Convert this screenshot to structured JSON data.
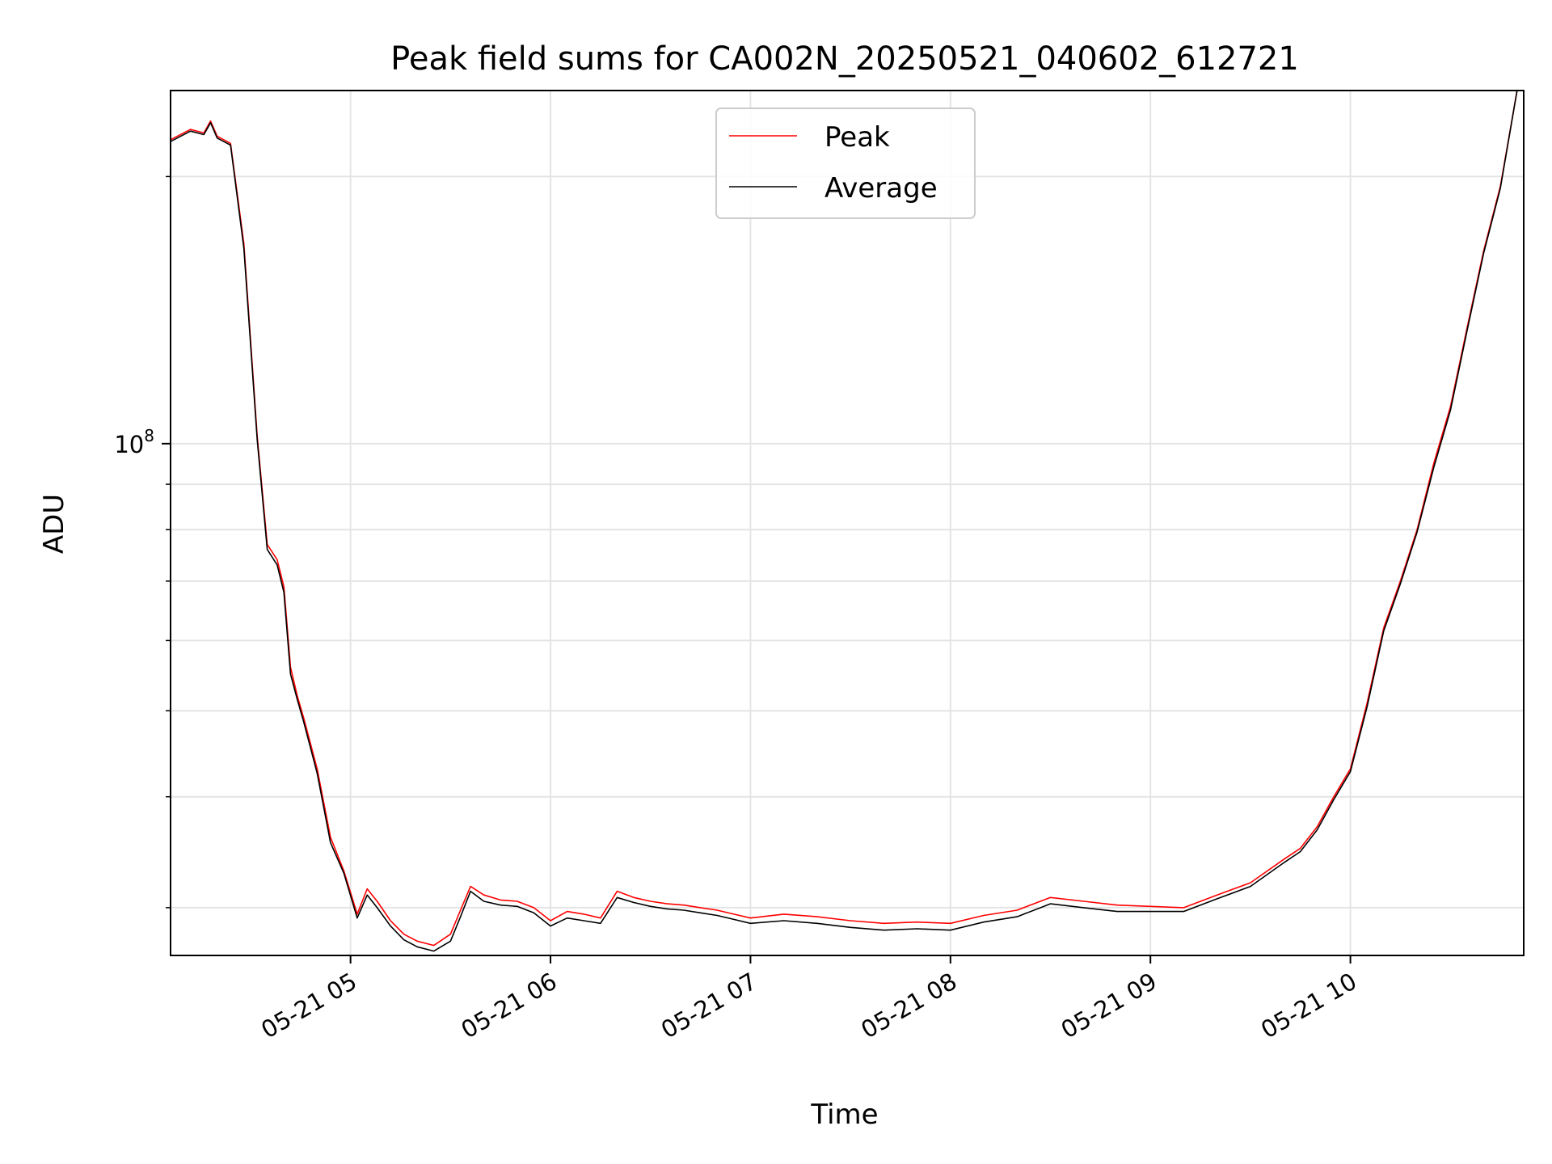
{
  "chart_data": {
    "type": "line",
    "title": "Peak field sums for CA002N_20250521_040602_612721",
    "xlabel": "Time",
    "ylabel": "ADU",
    "y_scale": "log",
    "grid": true,
    "legend_position": "top-center",
    "xlim": [
      "2025-05-21 04:06",
      "2025-05-21 10:52"
    ],
    "ylim": [
      26500000.0,
      250000000.0
    ],
    "x_ticks": [
      {
        "value": "2025-05-21 05:00",
        "label": "05-21 05"
      },
      {
        "value": "2025-05-21 06:00",
        "label": "05-21 06"
      },
      {
        "value": "2025-05-21 07:00",
        "label": "05-21 07"
      },
      {
        "value": "2025-05-21 08:00",
        "label": "05-21 08"
      },
      {
        "value": "2025-05-21 09:00",
        "label": "05-21 09"
      },
      {
        "value": "2025-05-21 10:00",
        "label": "05-21 10"
      }
    ],
    "y_major_ticks": [
      {
        "value": 100000000,
        "label_base": "10",
        "label_exp": "8"
      }
    ],
    "y_minor_ticks": [
      30000000,
      40000000,
      50000000,
      60000000,
      70000000,
      80000000,
      90000000,
      200000000
    ],
    "series": [
      {
        "name": "Peak",
        "color": "#ff0000",
        "x": [
          "2025-05-21 04:06",
          "2025-05-21 04:12",
          "2025-05-21 04:16",
          "2025-05-21 04:18",
          "2025-05-21 04:20",
          "2025-05-21 04:24",
          "2025-05-21 04:28",
          "2025-05-21 04:32",
          "2025-05-21 04:35",
          "2025-05-21 04:38",
          "2025-05-21 04:40",
          "2025-05-21 04:42",
          "2025-05-21 04:44",
          "2025-05-21 04:46",
          "2025-05-21 04:50",
          "2025-05-21 04:54",
          "2025-05-21 04:58",
          "2025-05-21 05:02",
          "2025-05-21 05:05",
          "2025-05-21 05:08",
          "2025-05-21 05:12",
          "2025-05-21 05:16",
          "2025-05-21 05:20",
          "2025-05-21 05:25",
          "2025-05-21 05:30",
          "2025-05-21 05:33",
          "2025-05-21 05:36",
          "2025-05-21 05:40",
          "2025-05-21 05:45",
          "2025-05-21 05:50",
          "2025-05-21 05:55",
          "2025-05-21 06:00",
          "2025-05-21 06:05",
          "2025-05-21 06:10",
          "2025-05-21 06:15",
          "2025-05-21 06:20",
          "2025-05-21 06:25",
          "2025-05-21 06:30",
          "2025-05-21 06:35",
          "2025-05-21 06:40",
          "2025-05-21 06:45",
          "2025-05-21 06:50",
          "2025-05-21 06:55",
          "2025-05-21 07:00",
          "2025-05-21 07:10",
          "2025-05-21 07:20",
          "2025-05-21 07:30",
          "2025-05-21 07:40",
          "2025-05-21 07:50",
          "2025-05-21 08:00",
          "2025-05-21 08:10",
          "2025-05-21 08:20",
          "2025-05-21 08:30",
          "2025-05-21 08:40",
          "2025-05-21 08:50",
          "2025-05-21 09:00",
          "2025-05-21 09:10",
          "2025-05-21 09:20",
          "2025-05-21 09:30",
          "2025-05-21 09:40",
          "2025-05-21 09:45",
          "2025-05-21 09:50",
          "2025-05-21 09:55",
          "2025-05-21 10:00",
          "2025-05-21 10:05",
          "2025-05-21 10:10",
          "2025-05-21 10:15",
          "2025-05-21 10:20",
          "2025-05-21 10:25",
          "2025-05-21 10:30",
          "2025-05-21 10:35",
          "2025-05-21 10:40",
          "2025-05-21 10:45",
          "2025-05-21 10:50"
        ],
        "values": [
          220000000,
          226000000,
          224000000,
          231000000,
          222000000,
          218000000,
          168000000,
          102000000,
          77000000,
          74000000,
          69000000,
          56000000,
          52000000,
          49000000,
          43000000,
          36000000,
          33000000,
          29500000,
          31500000,
          30500000,
          29000000,
          28000000,
          27500000,
          27200000,
          28000000,
          29800000,
          31700000,
          31000000,
          30600000,
          30500000,
          30000000,
          29000000,
          29700000,
          29500000,
          29200000,
          31300000,
          30800000,
          30500000,
          30300000,
          30200000,
          30000000,
          29800000,
          29500000,
          29200000,
          29500000,
          29300000,
          29000000,
          28800000,
          28900000,
          28800000,
          29400000,
          29800000,
          30800000,
          30500000,
          30200000,
          30100000,
          30000000,
          31000000,
          32000000,
          34000000,
          35000000,
          37000000,
          40000000,
          43000000,
          51000000,
          62000000,
          70000000,
          80000000,
          95000000,
          110000000,
          135000000,
          165000000,
          195000000,
          250000000
        ]
      },
      {
        "name": "Average",
        "color": "#000000",
        "x": [
          "2025-05-21 04:06",
          "2025-05-21 04:12",
          "2025-05-21 04:16",
          "2025-05-21 04:18",
          "2025-05-21 04:20",
          "2025-05-21 04:24",
          "2025-05-21 04:28",
          "2025-05-21 04:32",
          "2025-05-21 04:35",
          "2025-05-21 04:38",
          "2025-05-21 04:40",
          "2025-05-21 04:42",
          "2025-05-21 04:44",
          "2025-05-21 04:46",
          "2025-05-21 04:50",
          "2025-05-21 04:54",
          "2025-05-21 04:58",
          "2025-05-21 05:02",
          "2025-05-21 05:05",
          "2025-05-21 05:08",
          "2025-05-21 05:12",
          "2025-05-21 05:16",
          "2025-05-21 05:20",
          "2025-05-21 05:25",
          "2025-05-21 05:30",
          "2025-05-21 05:33",
          "2025-05-21 05:36",
          "2025-05-21 05:40",
          "2025-05-21 05:45",
          "2025-05-21 05:50",
          "2025-05-21 05:55",
          "2025-05-21 06:00",
          "2025-05-21 06:05",
          "2025-05-21 06:10",
          "2025-05-21 06:15",
          "2025-05-21 06:20",
          "2025-05-21 06:25",
          "2025-05-21 06:30",
          "2025-05-21 06:35",
          "2025-05-21 06:40",
          "2025-05-21 06:45",
          "2025-05-21 06:50",
          "2025-05-21 06:55",
          "2025-05-21 07:00",
          "2025-05-21 07:10",
          "2025-05-21 07:20",
          "2025-05-21 07:30",
          "2025-05-21 07:40",
          "2025-05-21 07:50",
          "2025-05-21 08:00",
          "2025-05-21 08:10",
          "2025-05-21 08:20",
          "2025-05-21 08:30",
          "2025-05-21 08:40",
          "2025-05-21 08:50",
          "2025-05-21 09:00",
          "2025-05-21 09:10",
          "2025-05-21 09:20",
          "2025-05-21 09:30",
          "2025-05-21 09:40",
          "2025-05-21 09:45",
          "2025-05-21 09:50",
          "2025-05-21 09:55",
          "2025-05-21 10:00",
          "2025-05-21 10:05",
          "2025-05-21 10:10",
          "2025-05-21 10:15",
          "2025-05-21 10:20",
          "2025-05-21 10:25",
          "2025-05-21 10:30",
          "2025-05-21 10:35",
          "2025-05-21 10:40",
          "2025-05-21 10:45",
          "2025-05-21 10:50"
        ],
        "values": [
          219000000,
          225000000,
          223000000,
          230000000,
          221000000,
          217000000,
          166000000,
          101000000,
          76000000,
          73000000,
          68000000,
          55000000,
          51500000,
          48500000,
          42500000,
          35500000,
          32800000,
          29200000,
          31000000,
          30000000,
          28600000,
          27600000,
          27100000,
          26800000,
          27500000,
          29300000,
          31300000,
          30500000,
          30200000,
          30100000,
          29600000,
          28600000,
          29200000,
          29000000,
          28800000,
          30800000,
          30400000,
          30100000,
          29900000,
          29800000,
          29600000,
          29400000,
          29100000,
          28800000,
          29000000,
          28800000,
          28500000,
          28300000,
          28400000,
          28300000,
          28900000,
          29300000,
          30300000,
          30000000,
          29700000,
          29700000,
          29700000,
          30700000,
          31700000,
          33700000,
          34700000,
          36700000,
          39700000,
          42700000,
          50500000,
          61500000,
          69500000,
          79500000,
          94000000,
          109000000,
          134000000,
          164000000,
          194000000,
          250000000
        ]
      }
    ]
  }
}
